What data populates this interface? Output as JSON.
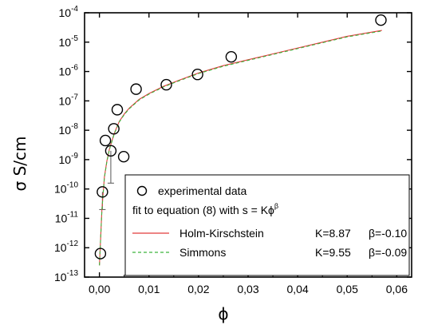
{
  "chart_data": {
    "type": "scatter",
    "xlabel": "ϕ",
    "ylabel": "σ  S/cm",
    "x_ticks": [
      "0,00",
      "0,01",
      "0,02",
      "0,03",
      "0,04",
      "0,05",
      "0,06"
    ],
    "x_tick_values": [
      0,
      0.01,
      0.02,
      0.03,
      0.04,
      0.05,
      0.06
    ],
    "y_tick_exponents": [
      -13,
      -12,
      -11,
      -10,
      -9,
      -8,
      -7,
      -6,
      -5,
      -4
    ],
    "xlim": [
      -0.003,
      0.063
    ],
    "ylim_log10": [
      -13,
      -4
    ],
    "y_scale": "log",
    "series": [
      {
        "name": "experimental data",
        "kind": "scatter",
        "marker": "open-circle",
        "x": [
          0.0002,
          0.0006,
          0.0012,
          0.0023,
          0.0029,
          0.0036,
          0.0049,
          0.0074,
          0.0135,
          0.0198,
          0.0266,
          0.0568
        ],
        "y_log10": [
          -12.2,
          -10.1,
          -8.35,
          -8.7,
          -7.95,
          -7.3,
          -8.9,
          -6.6,
          -6.45,
          -6.1,
          -5.5,
          -4.25
        ],
        "error_low_log10": [
          null,
          0.6,
          null,
          1.1,
          null,
          null,
          null,
          null,
          null,
          null,
          null,
          null
        ],
        "error_high_log10": [
          null,
          null,
          null,
          null,
          null,
          null,
          null,
          null,
          null,
          null,
          null,
          null
        ]
      },
      {
        "name": "Holm-Kirschstein",
        "kind": "line",
        "color": "#e23b3b",
        "x": [
          0.0,
          0.0005,
          0.001,
          0.0015,
          0.002,
          0.003,
          0.004,
          0.005,
          0.006,
          0.008,
          0.01,
          0.013,
          0.016,
          0.02,
          0.025,
          0.03,
          0.035,
          0.04,
          0.045,
          0.05,
          0.057
        ],
        "y_log10": [
          -12.6,
          -10.7,
          -9.6,
          -9.05,
          -8.65,
          -8.1,
          -7.7,
          -7.45,
          -7.25,
          -6.95,
          -6.75,
          -6.5,
          -6.3,
          -6.05,
          -5.8,
          -5.6,
          -5.4,
          -5.2,
          -5.0,
          -4.8,
          -4.6
        ]
      },
      {
        "name": "Simmons",
        "kind": "line",
        "style": "dashed",
        "color": "#3cb43c",
        "x": [
          0.0,
          0.0005,
          0.001,
          0.0015,
          0.002,
          0.003,
          0.004,
          0.005,
          0.006,
          0.008,
          0.01,
          0.013,
          0.016,
          0.02,
          0.025,
          0.03,
          0.035,
          0.04,
          0.045,
          0.05,
          0.057
        ],
        "y_log10": [
          -12.6,
          -10.72,
          -9.62,
          -9.07,
          -8.67,
          -8.12,
          -7.72,
          -7.47,
          -7.27,
          -6.97,
          -6.77,
          -6.52,
          -6.32,
          -6.07,
          -5.82,
          -5.62,
          -5.42,
          -5.22,
          -5.02,
          -4.82,
          -4.62
        ]
      }
    ],
    "legend": {
      "placement": "bottom-right",
      "entries": [
        {
          "label": "experimental data",
          "marker": "open-circle"
        },
        {
          "label": "fit to equation (8) with s = Kϕ",
          "superscript": "β"
        },
        {
          "label": "Holm-Kirschstein",
          "K": "K=8.87",
          "beta": "β=-0.10",
          "color": "#e23b3b",
          "style": "solid"
        },
        {
          "label": "Simmons",
          "K": "K=9.55",
          "beta": "β=-0.09",
          "color": "#3cb43c",
          "style": "dashed"
        }
      ]
    },
    "grid": false
  }
}
